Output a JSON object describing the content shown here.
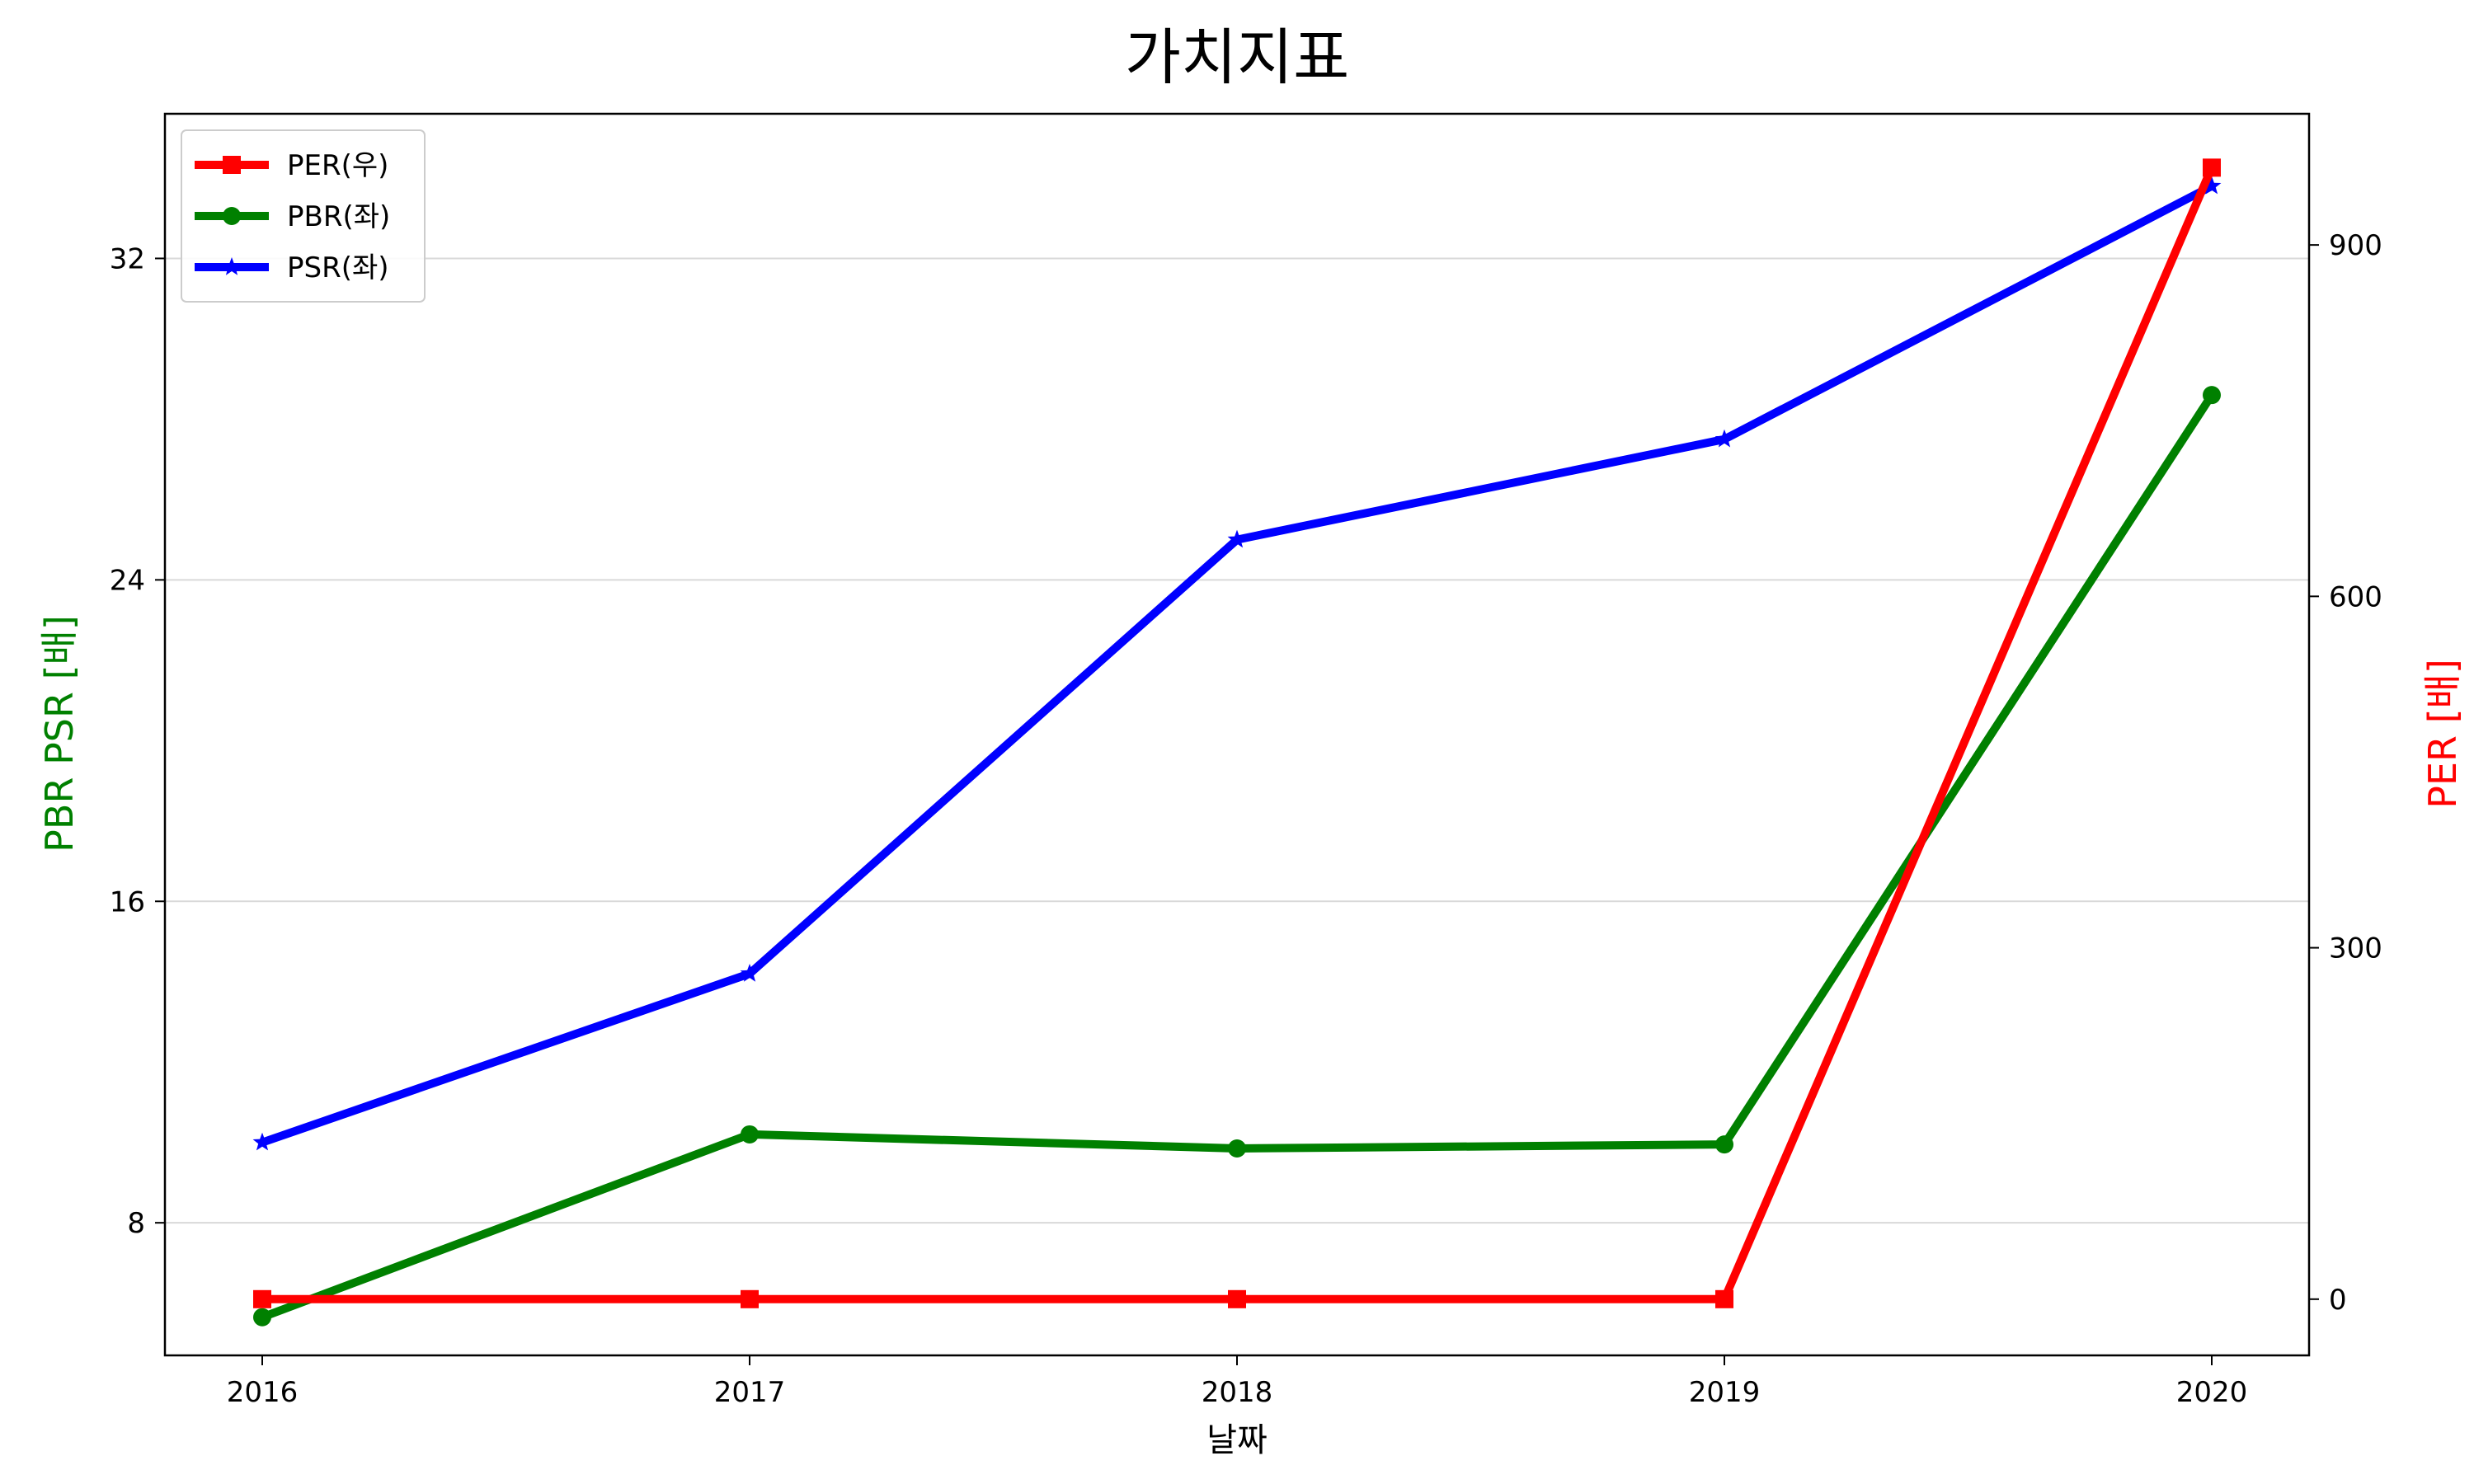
{
  "chart_data": {
    "type": "line",
    "title": "가치지표",
    "xlabel": "날짜",
    "ylabel_left": "PBR PSR [배]",
    "ylabel_right": "PER [배]",
    "x": [
      "2016",
      "2017",
      "2018",
      "2019",
      "2020"
    ],
    "x_ticks": [
      "2016",
      "2017",
      "2018",
      "2019",
      "2020"
    ],
    "yleft_lim": [
      4.7,
      35.6
    ],
    "yleft_ticks": [
      8,
      16,
      24,
      32
    ],
    "yright_lim": [
      -48,
      1012
    ],
    "yright_ticks": [
      0,
      300,
      600,
      900
    ],
    "grid": "horizontal",
    "legend_position": "top-left",
    "series": [
      {
        "name": "PER(우)",
        "axis": "right",
        "color": "#ff0000",
        "marker": "square",
        "values": [
          0,
          0,
          0,
          0,
          966
        ]
      },
      {
        "name": "PBR(좌)",
        "axis": "left",
        "color": "#008000",
        "marker": "circle",
        "values": [
          5.65,
          10.2,
          9.85,
          9.95,
          28.6
        ]
      },
      {
        "name": "PSR(좌)",
        "axis": "left",
        "color": "#0000ff",
        "marker": "star",
        "values": [
          10.0,
          14.2,
          25.0,
          27.5,
          33.8
        ]
      }
    ]
  }
}
